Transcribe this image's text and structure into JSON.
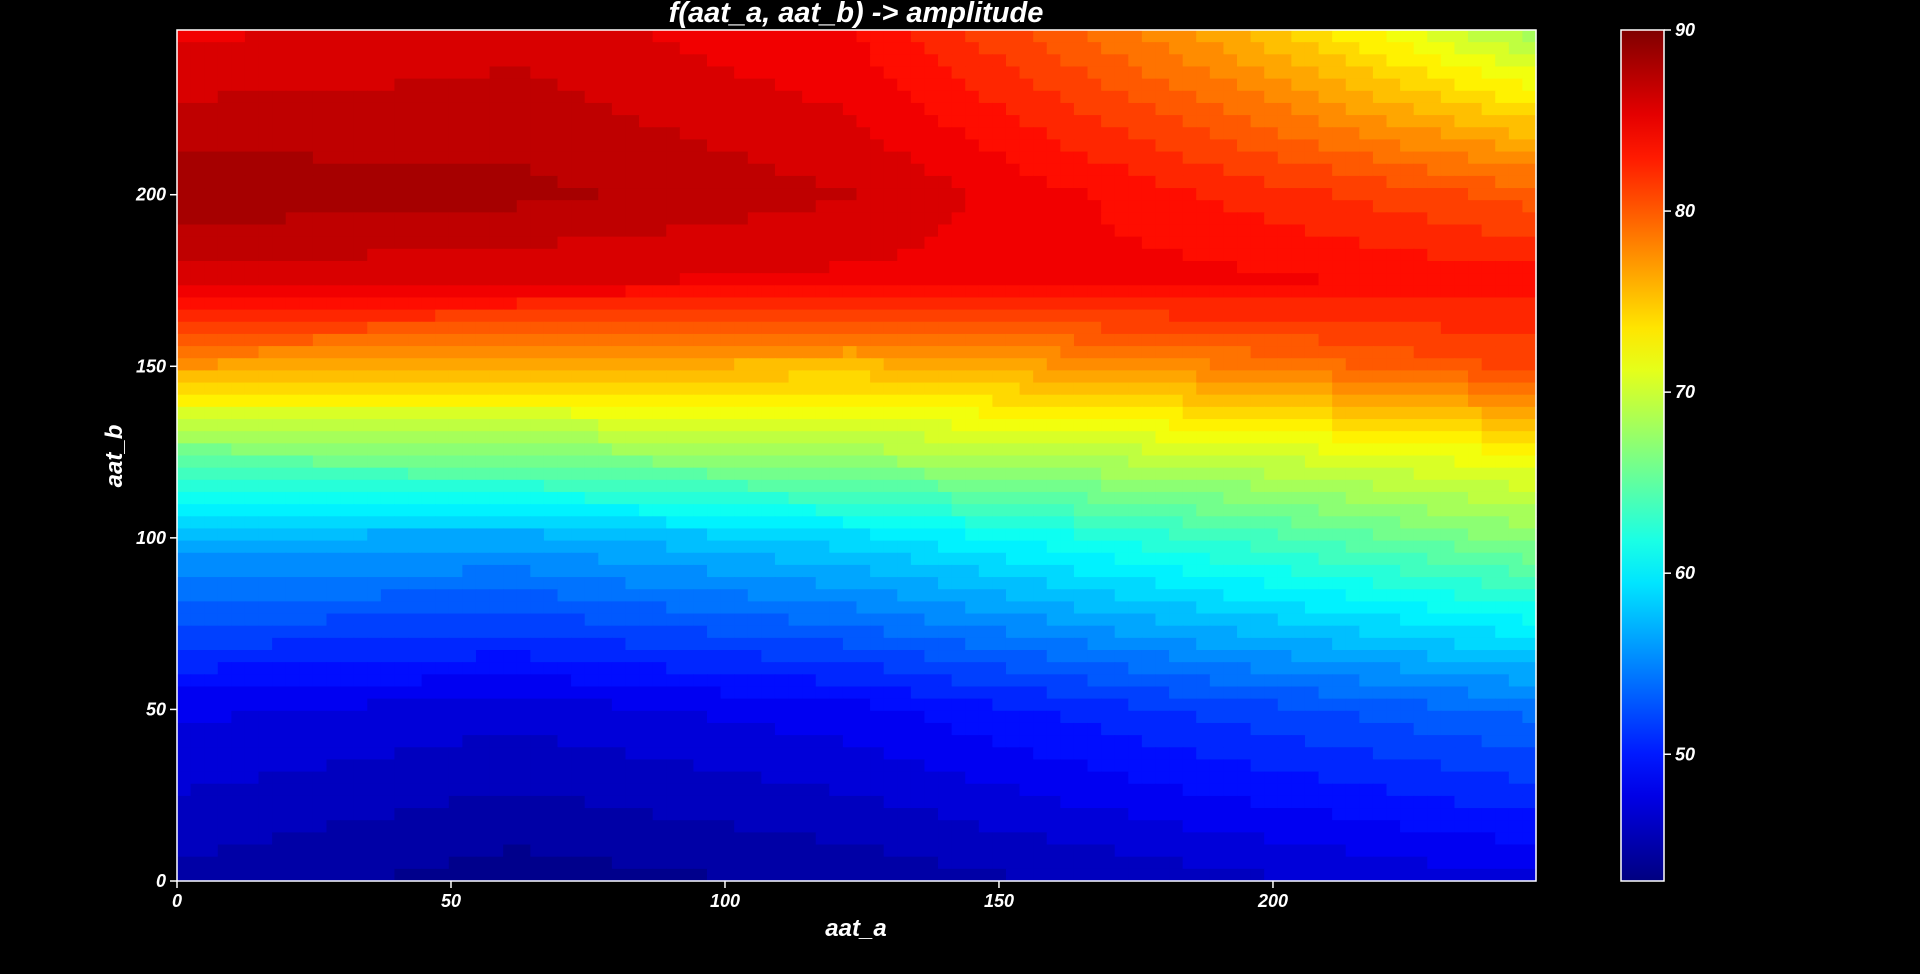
{
  "chart_data": {
    "type": "heatmap",
    "title": "f(aat_a, aat_b) -> amplitude",
    "xlabel": "aat_a",
    "ylabel": "aat_b",
    "xlim": [
      0,
      248
    ],
    "ylim": [
      0,
      248
    ],
    "x_ticks": [
      "0",
      "50",
      "100",
      "150",
      "200"
    ],
    "x_tick_values": [
      0,
      50,
      100,
      150,
      200
    ],
    "y_ticks": [
      "0",
      "50",
      "100",
      "150",
      "200"
    ],
    "y_tick_values": [
      0,
      50,
      100,
      150,
      200
    ],
    "colorbar": {
      "colormap": "jet",
      "vmin": 43,
      "vmax": 90,
      "ticks": [
        "50",
        "60",
        "70",
        "80",
        "90"
      ],
      "tick_values": [
        50,
        60,
        70,
        80,
        90
      ]
    },
    "grid": false,
    "x": [
      0,
      62,
      124,
      186,
      248
    ],
    "y": [
      0,
      50,
      100,
      125,
      150,
      175,
      200,
      248
    ],
    "z": [
      [
        45,
        43.5,
        44.5,
        46,
        47.5
      ],
      [
        48,
        47,
        48.5,
        51.5,
        54
      ],
      [
        57,
        56.5,
        59,
        63,
        67
      ],
      [
        66,
        67,
        68.5,
        70,
        72.5
      ],
      [
        77,
        76,
        75.5,
        78,
        81
      ],
      [
        86,
        85.5,
        85,
        84.5,
        83.5
      ],
      [
        88.5,
        88,
        86.5,
        83,
        80
      ],
      [
        85,
        86,
        84,
        77,
        68
      ]
    ]
  }
}
